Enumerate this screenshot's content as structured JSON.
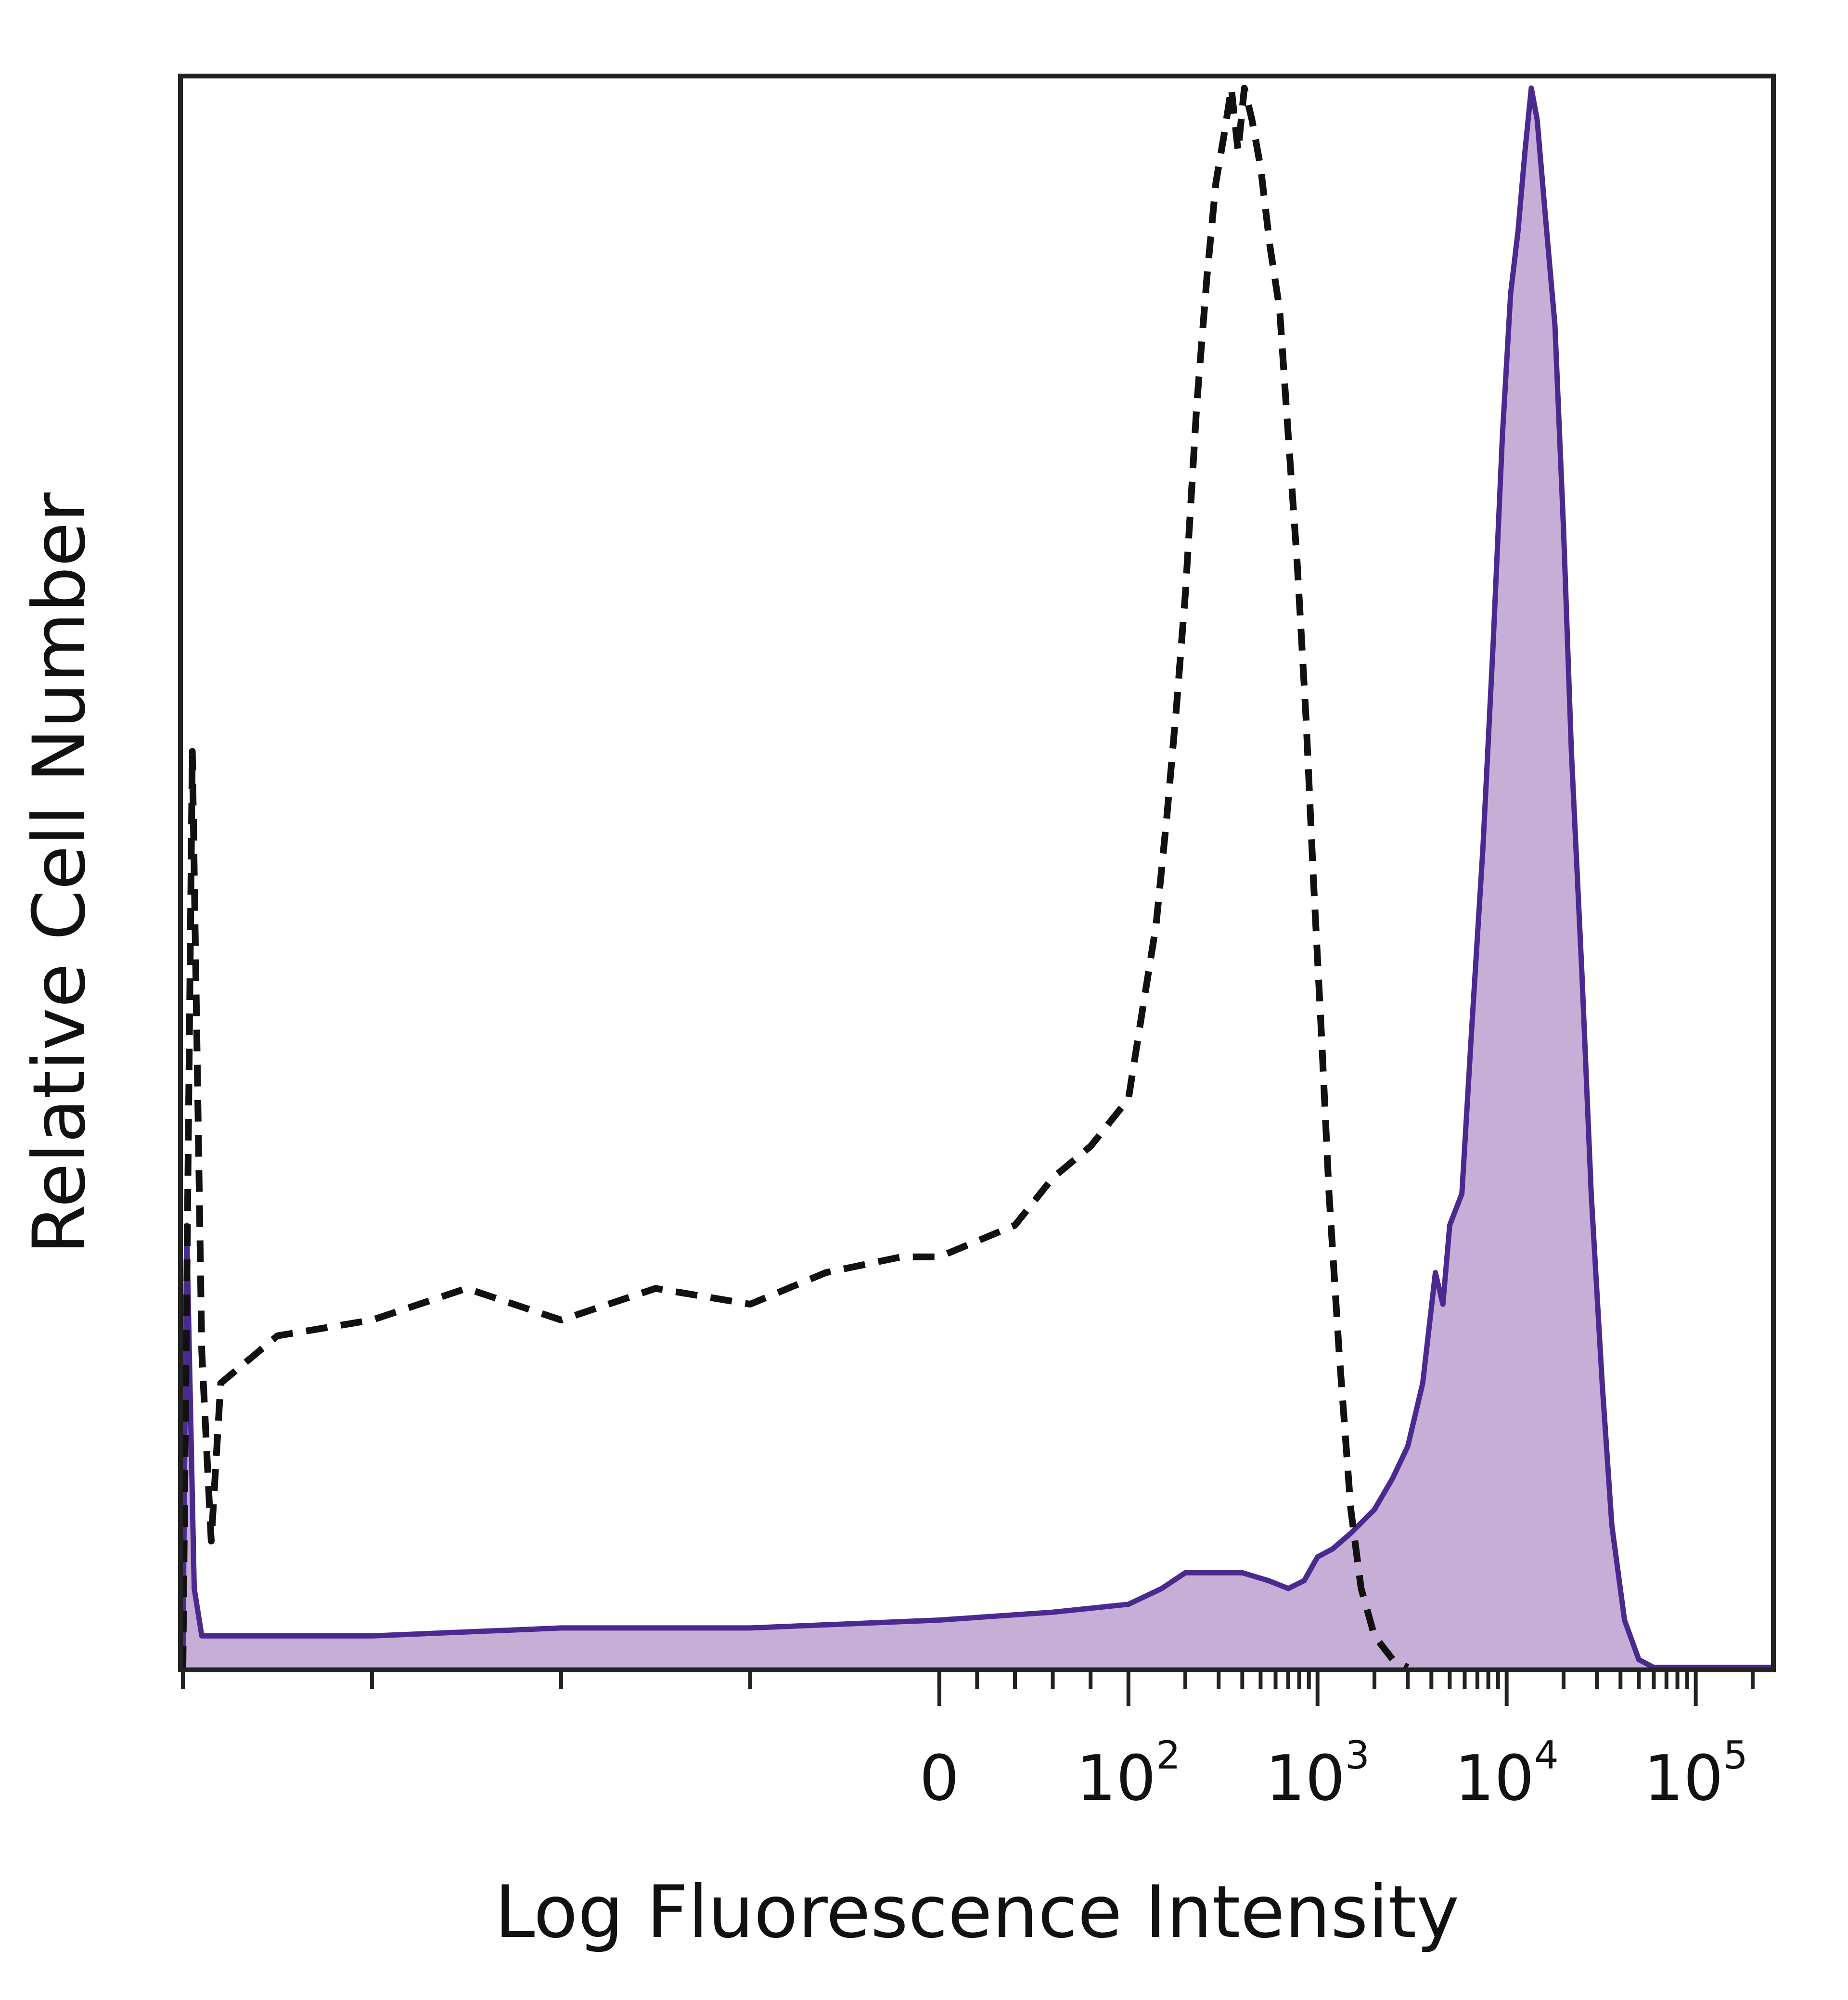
{
  "chart_data": {
    "type": "area",
    "xlabel": "Log Fluorescence Intensity",
    "ylabel": "Relative Cell Number",
    "x_scale": "biexponential",
    "x_ticks": [
      {
        "value": 0,
        "base": "0",
        "exp": ""
      },
      {
        "value": 100,
        "base": "10",
        "exp": "2"
      },
      {
        "value": 1000,
        "base": "10",
        "exp": "3"
      },
      {
        "value": 10000,
        "base": "10",
        "exp": "4"
      },
      {
        "value": 100000,
        "base": "10",
        "exp": "5"
      }
    ],
    "xlim": [
      -400,
      250000
    ],
    "ylim": [
      0,
      100
    ],
    "grid": false,
    "legend": "none",
    "series": [
      {
        "style": "dashed",
        "fill": false,
        "line_color": "#111111",
        "points": [
          [
            -400,
            0
          ],
          [
            -395,
            58
          ],
          [
            -390,
            20
          ],
          [
            -385,
            8
          ],
          [
            -380,
            18
          ],
          [
            -350,
            21
          ],
          [
            -300,
            22
          ],
          [
            -250,
            24
          ],
          [
            -200,
            22
          ],
          [
            -150,
            24
          ],
          [
            -100,
            23
          ],
          [
            -60,
            25
          ],
          [
            -20,
            26
          ],
          [
            0,
            26
          ],
          [
            20,
            27
          ],
          [
            40,
            28
          ],
          [
            60,
            31
          ],
          [
            80,
            33
          ],
          [
            100,
            36
          ],
          [
            120,
            42
          ],
          [
            140,
            47
          ],
          [
            160,
            54
          ],
          [
            180,
            61
          ],
          [
            200,
            68
          ],
          [
            230,
            80
          ],
          [
            260,
            88
          ],
          [
            290,
            94
          ],
          [
            320,
            97
          ],
          [
            350,
            100
          ],
          [
            380,
            96
          ],
          [
            410,
            100
          ],
          [
            450,
            98
          ],
          [
            500,
            95
          ],
          [
            560,
            90
          ],
          [
            630,
            86
          ],
          [
            700,
            78
          ],
          [
            780,
            70
          ],
          [
            870,
            60
          ],
          [
            950,
            50
          ],
          [
            1050,
            40
          ],
          [
            1150,
            30
          ],
          [
            1300,
            20
          ],
          [
            1500,
            10
          ],
          [
            1700,
            5
          ],
          [
            2000,
            2
          ],
          [
            2500,
            0.5
          ],
          [
            3000,
            0
          ]
        ]
      },
      {
        "style": "solid",
        "fill": true,
        "line_color": "#4b2a8f",
        "fill_color": "#c7aed6",
        "points": [
          [
            -400,
            0
          ],
          [
            -398,
            28
          ],
          [
            -394,
            5
          ],
          [
            -390,
            2
          ],
          [
            -300,
            2
          ],
          [
            -200,
            2.5
          ],
          [
            -100,
            2.5
          ],
          [
            0,
            3
          ],
          [
            60,
            3.5
          ],
          [
            100,
            4
          ],
          [
            150,
            5
          ],
          [
            200,
            6
          ],
          [
            300,
            6
          ],
          [
            400,
            6
          ],
          [
            550,
            5.5
          ],
          [
            700,
            5
          ],
          [
            850,
            5.5
          ],
          [
            1000,
            7
          ],
          [
            1200,
            7.5
          ],
          [
            1500,
            8.5
          ],
          [
            2000,
            10
          ],
          [
            2500,
            12
          ],
          [
            3000,
            14
          ],
          [
            3600,
            18
          ],
          [
            4200,
            25
          ],
          [
            4600,
            23
          ],
          [
            5000,
            28
          ],
          [
            5800,
            30
          ],
          [
            6500,
            40
          ],
          [
            7500,
            52
          ],
          [
            8500,
            65
          ],
          [
            9500,
            78
          ],
          [
            10500,
            87
          ],
          [
            11500,
            91
          ],
          [
            12500,
            96
          ],
          [
            13500,
            100
          ],
          [
            14500,
            98
          ],
          [
            16000,
            92
          ],
          [
            18000,
            85
          ],
          [
            20000,
            72
          ],
          [
            22000,
            58
          ],
          [
            25000,
            44
          ],
          [
            28000,
            30
          ],
          [
            32000,
            18
          ],
          [
            36000,
            9
          ],
          [
            42000,
            3
          ],
          [
            50000,
            0.5
          ],
          [
            60000,
            0
          ],
          [
            250000,
            0
          ]
        ]
      }
    ]
  }
}
